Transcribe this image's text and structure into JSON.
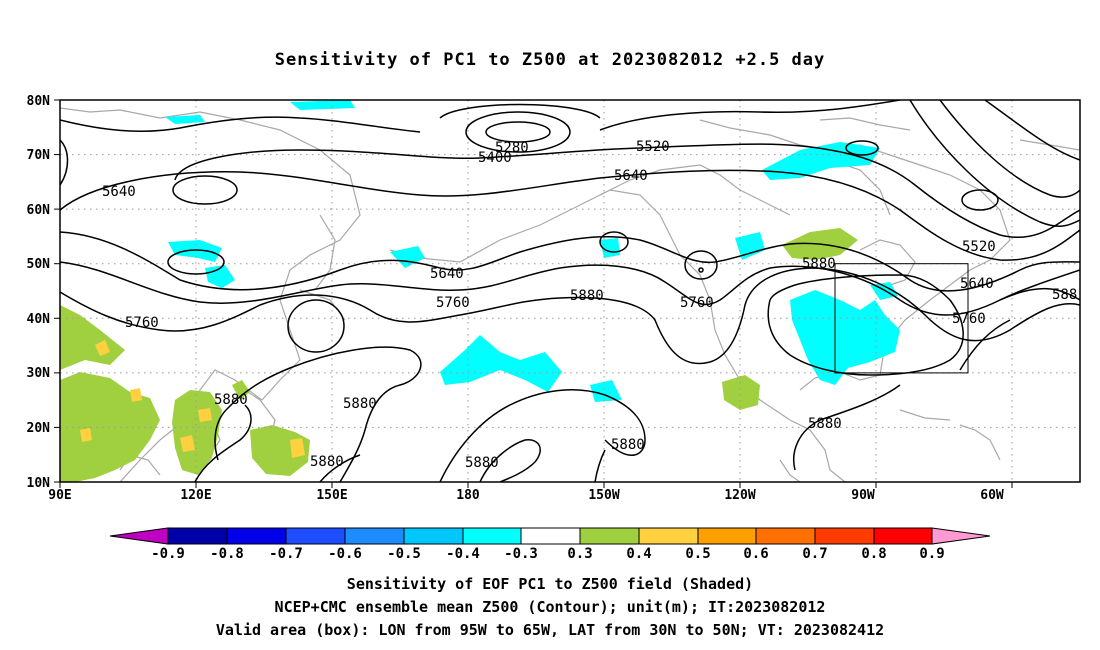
{
  "title": "Sensitivity of PC1 to Z500 at 2023082012 +2.5 day",
  "lat_labels": [
    "80N",
    "70N",
    "60N",
    "50N",
    "40N",
    "30N",
    "20N",
    "10N"
  ],
  "lon_labels": [
    "90E",
    "120E",
    "150E",
    "180",
    "150W",
    "120W",
    "90W",
    "60W"
  ],
  "contour_labels": [
    "5280",
    "5400",
    "5520",
    "5640",
    "5640",
    "5640",
    "5760",
    "5760",
    "5760",
    "5880",
    "5880",
    "5880",
    "5880",
    "5880",
    "5880",
    "5880",
    "5880",
    "5520",
    "5640",
    "5760",
    "588"
  ],
  "colorbar": {
    "labels": [
      "-0.9",
      "-0.8",
      "-0.7",
      "-0.6",
      "-0.5",
      "-0.4",
      "-0.3",
      "0.3",
      "0.4",
      "0.5",
      "0.6",
      "0.7",
      "0.8",
      "0.9"
    ],
    "colors": [
      "#c000c0",
      "#0000a8",
      "#0000e8",
      "#1e4cff",
      "#1e8cff",
      "#00c8ff",
      "#00ffff",
      "#ffffff",
      "#a0d040",
      "#ffd040",
      "#ffa000",
      "#ff7000",
      "#ff3c00",
      "#ff0000",
      "#ff9ad2"
    ]
  },
  "captions": [
    "Sensitivity of EOF PC1 to Z500 field (Shaded)",
    "NCEP+CMC ensemble mean Z500 (Contour); unit(m); IT:2023082012",
    "Valid area (box): LON from 95W to 65W, LAT from 30N to 50N; VT: 2023082412"
  ],
  "valid_box": {
    "lon_min": "95W",
    "lon_max": "65W",
    "lat_min": "30N",
    "lat_max": "50N"
  }
}
